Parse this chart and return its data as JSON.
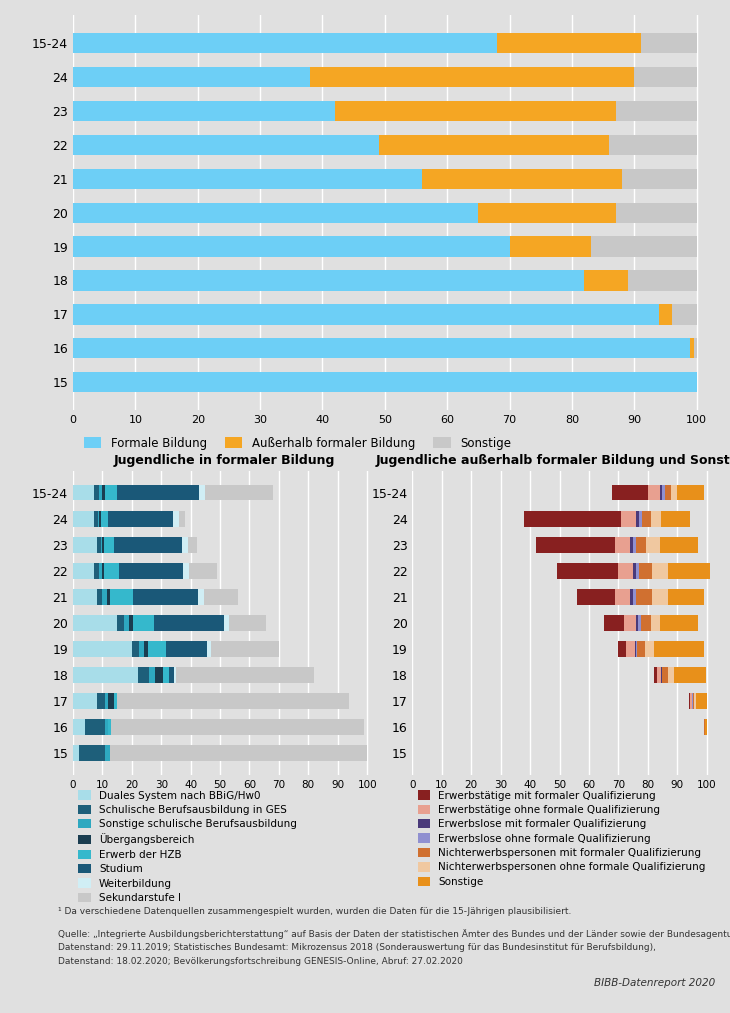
{
  "top_chart": {
    "categories": [
      "15-24",
      "24",
      "23",
      "22",
      "21",
      "20",
      "19",
      "18",
      "17",
      "16",
      "15"
    ],
    "formale_bildung": [
      68,
      38,
      42,
      49,
      56,
      65,
      70,
      82,
      94,
      99,
      100
    ],
    "ausserhalb": [
      23,
      52,
      45,
      37,
      32,
      22,
      13,
      7,
      2,
      0.5,
      0
    ],
    "sonstige": [
      9,
      10,
      13,
      14,
      12,
      13,
      17,
      11,
      4,
      0.5,
      0
    ],
    "color_formal": "#6dcff6",
    "color_ausserhalb": "#f5a623",
    "color_sonstige": "#c8c8c8"
  },
  "left_chart": {
    "title": "Jugendliche in formaler Bildung",
    "categories": [
      "15-24",
      "24",
      "23",
      "22",
      "21",
      "20",
      "19",
      "18",
      "17",
      "16",
      "15"
    ],
    "duales": [
      7.0,
      7.0,
      8.0,
      7.0,
      8.0,
      15.0,
      20.0,
      22.0,
      8.0,
      4.0,
      2.0
    ],
    "schulische_ges": [
      2.0,
      1.5,
      1.5,
      2.0,
      2.0,
      2.5,
      2.5,
      4.0,
      3.0,
      7.0,
      9.0
    ],
    "sonstige_schulisch": [
      1.0,
      0.5,
      0.5,
      1.0,
      1.5,
      1.5,
      1.5,
      2.0,
      1.0,
      1.0,
      1.5
    ],
    "uebergang": [
      1.0,
      0.5,
      0.5,
      0.5,
      1.0,
      1.5,
      1.5,
      2.5,
      2.0,
      0.0,
      0.0
    ],
    "hzb": [
      4.0,
      2.5,
      3.5,
      5.0,
      8.0,
      7.0,
      6.0,
      2.0,
      1.0,
      1.0,
      0.0
    ],
    "studium": [
      28.0,
      22.0,
      23.0,
      22.0,
      22.0,
      24.0,
      14.0,
      2.0,
      0.0,
      0.0,
      0.0
    ],
    "weiterbildung": [
      2.0,
      2.0,
      2.0,
      2.0,
      2.0,
      1.5,
      1.5,
      0.5,
      0.0,
      0.0,
      0.0
    ],
    "sekundar": [
      23.0,
      2.0,
      3.0,
      9.5,
      11.5,
      12.5,
      23.0,
      47.0,
      79.0,
      86.0,
      87.5
    ],
    "color_duales": "#a8dde9",
    "color_schulische_ges": "#1e5f7a",
    "color_sonstige_schulisch": "#2ea8c0",
    "color_uebergang": "#1a3d50",
    "color_hzb": "#35b8cc",
    "color_studium": "#1a5878",
    "color_weiterbildung": "#d0eef5",
    "color_sekundar": "#c8c8c8"
  },
  "right_chart": {
    "title": "Jugendliche außerhalb formaler Bildung und Sonstige",
    "categories": [
      "15-24",
      "24",
      "23",
      "22",
      "21",
      "20",
      "19",
      "18",
      "17",
      "16",
      "15"
    ],
    "start_offset": [
      68,
      38,
      42,
      49,
      56,
      65,
      70,
      82,
      94,
      99,
      100
    ],
    "erwerb_formal": [
      12.0,
      33.0,
      27.0,
      21.0,
      13.0,
      7.0,
      2.5,
      1.0,
      0.5,
      0.0,
      0.0
    ],
    "erwerb_ohne": [
      4.0,
      5.0,
      5.0,
      5.0,
      5.0,
      4.0,
      3.0,
      1.5,
      0.5,
      0.0,
      0.0
    ],
    "erwerbs_formal": [
      1.0,
      1.0,
      1.0,
      1.0,
      1.0,
      0.8,
      0.5,
      0.2,
      0.2,
      0.0,
      0.0
    ],
    "erwerbs_ohne": [
      1.0,
      1.0,
      1.0,
      1.0,
      1.0,
      0.8,
      0.5,
      0.2,
      0.1,
      0.0,
      0.0
    ],
    "nierwerb_formal": [
      2.0,
      3.0,
      3.5,
      4.5,
      5.5,
      3.5,
      2.5,
      2.0,
      0.5,
      0.3,
      0.0
    ],
    "nierwerb_ohne": [
      2.0,
      3.5,
      4.5,
      5.5,
      5.5,
      3.0,
      3.0,
      2.0,
      0.5,
      0.2,
      0.0
    ],
    "sonstige_r": [
      9.0,
      10.0,
      13.0,
      14.0,
      12.0,
      13.0,
      17.0,
      11.0,
      4.0,
      0.5,
      0.0
    ],
    "color_erwerb_formal": "#882020",
    "color_erwerb_ohne": "#e8a090",
    "color_erwerbs_formal": "#4a3a7a",
    "color_erwerbs_ohne": "#9090d0",
    "color_nierwerb_formal": "#d07030",
    "color_nierwerb_ohne": "#f0c8a0",
    "color_sonstige_r": "#e8901a"
  },
  "legend_left": [
    {
      "label": "Duales System nach BBiG/Hw0",
      "color": "#a8dde9"
    },
    {
      "label": "Schulische Berufsausbildung in GES",
      "color": "#1e5f7a"
    },
    {
      "label": "Sonstige schulische Berufsausbildung",
      "color": "#2ea8c0"
    },
    {
      "label": "Übergangsbereich",
      "color": "#1a3d50"
    },
    {
      "label": "Erwerb der HZB",
      "color": "#35b8cc"
    },
    {
      "label": "Studium",
      "color": "#1a5878"
    },
    {
      "label": "Weiterbildung",
      "color": "#d0eef5"
    },
    {
      "label": "Sekundarstufe I",
      "color": "#c8c8c8"
    }
  ],
  "legend_right": [
    {
      "label": "Erwerbstätige mit formaler Qualifizierung",
      "color": "#882020"
    },
    {
      "label": "Erwerbstätige ohne formale Qualifizierung",
      "color": "#e8a090"
    },
    {
      "label": "Erwerbslose mit formaler Qualifizierung",
      "color": "#4a3a7a"
    },
    {
      "label": "Erwerbslose ohne formale Qualifizierung",
      "color": "#9090d0"
    },
    {
      "label": "Nichterwerbspersonen mit formaler Qualifizierung",
      "color": "#d07030"
    },
    {
      "label": "Nichterwerbspersonen ohne formale Qualifizierung",
      "color": "#f0c8a0"
    },
    {
      "label": "Sonstige",
      "color": "#e8901a"
    }
  ],
  "footnote": "¹ Da verschiedene Datenquellen zusammengespielt wurden, wurden die Daten für die 15-Jährigen plausibilisiert.",
  "source_line1": "Quelle: „Integrierte Ausbildungsberichterstattung“ auf Basis der Daten der statistischen Ämter des Bundes und der Länder sowie der Bundesagentur für Arbeit,",
  "source_line2": "Datenstand: 29.11.2019; Statistisches Bundesamt: Mikrozensus 2018 (Sonderauswertung für das Bundesinstitut für Berufsbildung),",
  "source_line3": "Datenstand: 18.02.2020; Bevölkerungsfortschreibung GENESIS-Online, Abruf: 27.02.2020",
  "bibb": "BIBB-Datenreport 2020",
  "bg_color": "#e0e0e0"
}
